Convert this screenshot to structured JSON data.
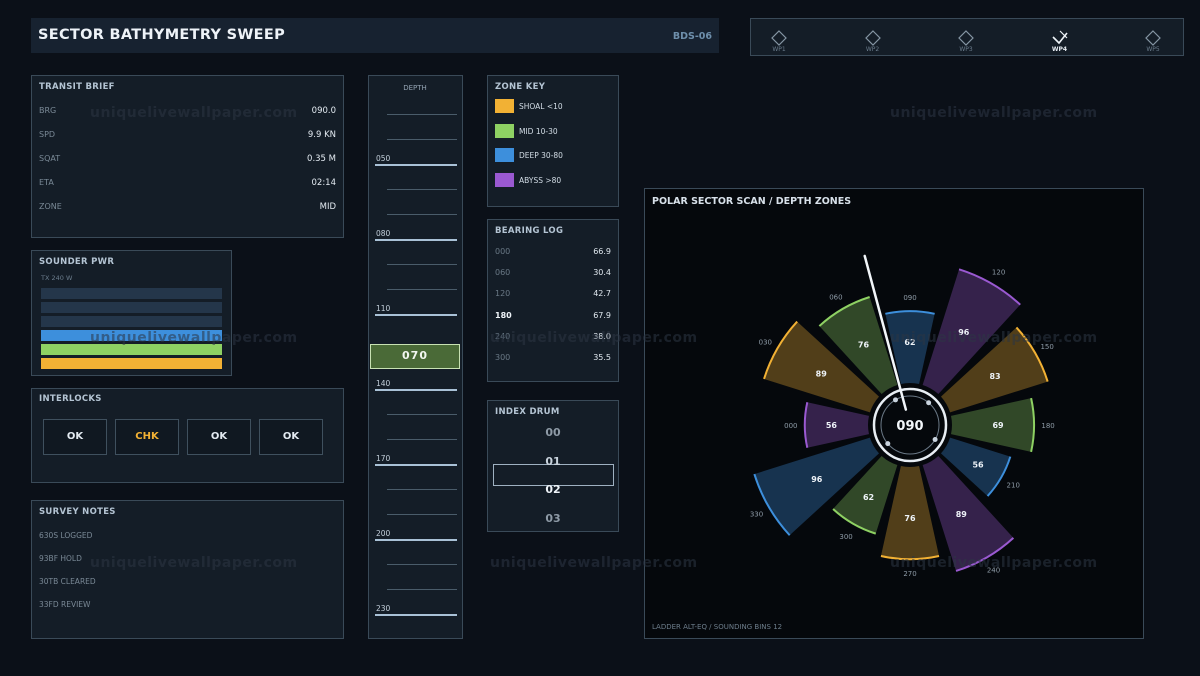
{
  "header": {
    "title": "SECTOR BATHYMETRY SWEEP",
    "code": "BDS-06"
  },
  "waypoints": [
    {
      "label": "WP1",
      "active": false
    },
    {
      "label": "WP2",
      "active": false
    },
    {
      "label": "WP3",
      "active": false
    },
    {
      "label": "WP4",
      "active": true
    },
    {
      "label": "WP5",
      "active": false
    }
  ],
  "transit": {
    "title": "TRANSIT BRIEF",
    "rows": [
      {
        "k": "BRG",
        "v": "090.0"
      },
      {
        "k": "SPD",
        "v": "9.9 KN"
      },
      {
        "k": "SQAT",
        "v": "0.35 M"
      },
      {
        "k": "ETA",
        "v": "02:14"
      },
      {
        "k": "ZONE",
        "v": "MID"
      }
    ]
  },
  "sounder": {
    "title": "SOUNDER PWR",
    "sub": "TX 240 W",
    "bars": [
      {
        "color": "#24364a"
      },
      {
        "color": "#24364a"
      },
      {
        "color": "#24364a"
      },
      {
        "color": "#3d8fdc"
      },
      {
        "color": "#8ed163"
      },
      {
        "color": "#f2b134"
      }
    ]
  },
  "interlocks": {
    "title": "INTERLOCKS",
    "buttons": [
      {
        "label": "OK",
        "color": "#e4ebf2"
      },
      {
        "label": "CHK",
        "color": "#f2b134"
      },
      {
        "label": "OK",
        "color": "#e4ebf2"
      },
      {
        "label": "OK",
        "color": "#e4ebf2"
      }
    ]
  },
  "notes": {
    "title": "SURVEY NOTES",
    "items": [
      "630S LOGGED",
      "93BF HOLD",
      "30TB CLEARED",
      "33FD REVIEW"
    ]
  },
  "depth": {
    "title": "DEPTH",
    "labels": [
      "050",
      "080",
      "110",
      "140",
      "170",
      "200",
      "230"
    ],
    "current": "070"
  },
  "zonekey": {
    "title": "ZONE KEY",
    "items": [
      {
        "label": "SHOAL <10",
        "color": "#f2b134"
      },
      {
        "label": "MID 10-30",
        "color": "#8ed163"
      },
      {
        "label": "DEEP 30-80",
        "color": "#3d8fdc"
      },
      {
        "label": "ABYSS >80",
        "color": "#9a59d1"
      }
    ]
  },
  "bearing_log": {
    "title": "BEARING LOG",
    "rows": [
      {
        "k": "000",
        "v": "66.9",
        "highlight": false
      },
      {
        "k": "060",
        "v": "30.4",
        "highlight": false
      },
      {
        "k": "120",
        "v": "42.7",
        "highlight": false
      },
      {
        "k": "180",
        "v": "67.9",
        "highlight": true
      },
      {
        "k": "240",
        "v": "38.0",
        "highlight": false
      },
      {
        "k": "300",
        "v": "35.5",
        "highlight": false
      }
    ]
  },
  "drum": {
    "title": "INDEX DRUM",
    "values": [
      "00",
      "01",
      "02",
      "03"
    ],
    "selected": 2
  },
  "polar": {
    "title": "POLAR SECTOR SCAN / DEPTH ZONES",
    "footer": "LADDER ALT-EQ / SOUNDING BINS 12",
    "center": "090",
    "pointer_deg": 345,
    "sectors": [
      {
        "angle": 0,
        "label": "090",
        "value": 62,
        "color": "#3d8fdc"
      },
      {
        "angle": 30,
        "label": "120",
        "value": 96,
        "color": "#9a59d1"
      },
      {
        "angle": 60,
        "label": "150",
        "value": 83,
        "color": "#f2b134"
      },
      {
        "angle": 90,
        "label": "180",
        "value": 69,
        "color": "#8ed163"
      },
      {
        "angle": 120,
        "label": "210",
        "value": 56,
        "color": "#3d8fdc"
      },
      {
        "angle": 150,
        "label": "240",
        "value": 89,
        "color": "#9a59d1"
      },
      {
        "angle": 180,
        "label": "270",
        "value": 76,
        "color": "#f2b134"
      },
      {
        "angle": 210,
        "label": "300",
        "value": 62,
        "color": "#8ed163"
      },
      {
        "angle": 240,
        "label": "330",
        "value": 96,
        "color": "#3d8fdc"
      },
      {
        "angle": 270,
        "label": "000",
        "value": 56,
        "color": "#9a59d1"
      },
      {
        "angle": 300,
        "label": "030",
        "value": 89,
        "color": "#f2b134"
      },
      {
        "angle": 330,
        "label": "060",
        "value": 76,
        "color": "#8ed163"
      }
    ]
  },
  "watermark": "uniquelivewallpaper.com"
}
